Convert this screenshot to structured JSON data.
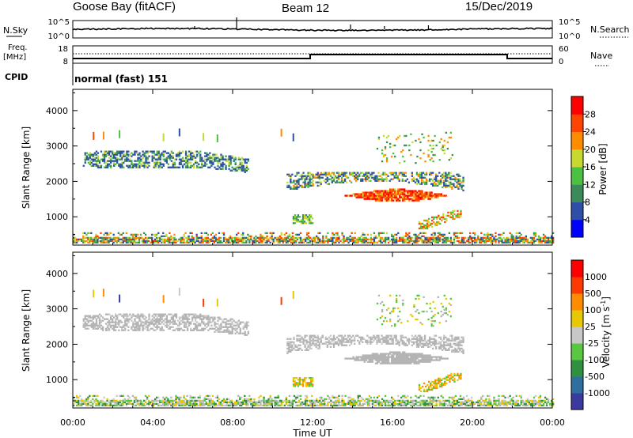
{
  "header": {
    "station": "Goose Bay (fitACF)",
    "beam": "Beam 12",
    "date": "15/Dec/2019"
  },
  "labels": {
    "nsky": "N.Sky",
    "nsearch": "N.Search",
    "freq_line1": "Freq.",
    "freq_line2": "[MHz]",
    "nave": "Nave",
    "cpid": "CPID",
    "cpid_value": "normal (fast) 151",
    "nsky_ticks": [
      "10^5",
      "10^0"
    ],
    "nsearch_ticks": [
      "10^5",
      "10^0"
    ],
    "freq_ticks": [
      "18",
      "8"
    ],
    "nave_ticks": [
      "60",
      "0"
    ]
  },
  "colors": {
    "power_scale": [
      "#0000ff",
      "#2e4fa8",
      "#3a8a5a",
      "#4cc040",
      "#c8d830",
      "#ff8c00",
      "#ff4400",
      "#ff0000"
    ],
    "velocity_scale": [
      "#3a3aa0",
      "#2e6fa0",
      "#2f9040",
      "#58c840",
      "#c8c8c8",
      "#e8c800",
      "#ff8c00",
      "#ff3a00",
      "#ff0000"
    ],
    "ground_scatter": "#b4b4b4"
  },
  "chart_data": [
    {
      "type": "heatmap",
      "name": "power",
      "ylabel": "Slant Range [km]",
      "yticks": [
        "1000",
        "2000",
        "3000",
        "4000"
      ],
      "ylim": [
        200,
        4600
      ],
      "xlim": [
        0,
        24
      ],
      "cbar_label": "Power [dB]",
      "cbar_ticks": [
        "4",
        "8",
        "12",
        "16",
        "20",
        "24",
        "28"
      ],
      "cbar_range": [
        0,
        32
      ]
    },
    {
      "type": "heatmap",
      "name": "velocity",
      "ylabel": "Slant Range [km]",
      "yticks": [
        "1000",
        "2000",
        "3000",
        "4000"
      ],
      "ylim": [
        200,
        4600
      ],
      "xlim": [
        0,
        24
      ],
      "xlabel": "Time UT",
      "xticks": [
        "00:00",
        "04:00",
        "08:00",
        "12:00",
        "16:00",
        "20:00",
        "00:00"
      ],
      "cbar_label": "Velocity [m s",
      "cbar_label_sup": "-1",
      "cbar_label_end": "]",
      "cbar_ticks": [
        "1000",
        "500",
        "100",
        "25",
        "-25",
        "-100",
        "-500",
        "-1000"
      ]
    }
  ]
}
